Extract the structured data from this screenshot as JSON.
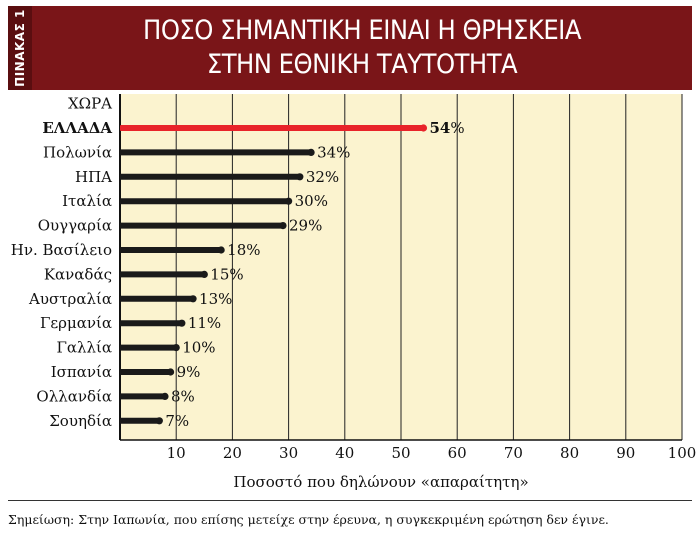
{
  "header": {
    "side_label": "ΠΙΝΑΚΑΣ 1",
    "title_line1": "ΠΟΣΟ ΣΗΜΑΝΤΙΚΗ ΕΙΝΑΙ Η ΘΡΗΣΚΕΙΑ",
    "title_line2": "ΣΤΗΝ ΕΘΝΙΚΗ ΤΑΥΤΟΤΗΤΑ"
  },
  "colors": {
    "header_bg": "#7a1518",
    "plot_bg": "#fbf3cf",
    "bar_default": "#1a1a1a",
    "bar_highlight": "#e8232a"
  },
  "chart_data": {
    "type": "bar",
    "orientation": "horizontal",
    "category_header": "ΧΩΡΑ",
    "categories": [
      "ΕΛΛΑΔΑ",
      "Πολωνία",
      "ΗΠΑ",
      "Ιταλία",
      "Ουγγαρία",
      "Ην. Βασίλειο",
      "Καναδάς",
      "Αυστραλία",
      "Γερμανία",
      "Γαλλία",
      "Ισπανία",
      "Ολλανδία",
      "Σουηδία"
    ],
    "values": [
      54,
      34,
      32,
      30,
      29,
      18,
      15,
      13,
      11,
      10,
      9,
      8,
      7
    ],
    "value_suffix": "%",
    "highlight": "ΕΛΛΑΔΑ",
    "xlabel": "Ποσοστό που δηλώνουν «απαραίτητη»",
    "xlim": [
      0,
      100
    ],
    "xticks": [
      10,
      20,
      30,
      40,
      50,
      60,
      70,
      80,
      90,
      100
    ],
    "grid": true
  },
  "footnote": "Σημείωση: Στην Ιαπωνία, που επίσης μετείχε στην έρευνα, η συγκεκριμένη ερώτηση δεν έγινε."
}
